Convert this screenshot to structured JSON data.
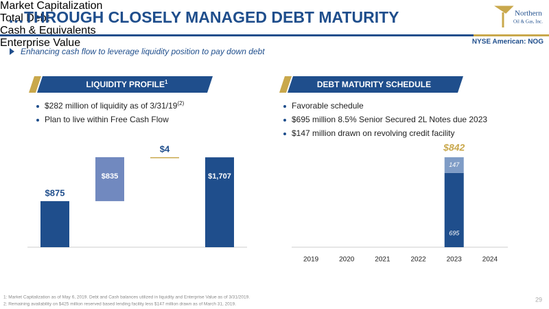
{
  "header": {
    "title": "…THROUGH CLOSELY MANAGED DEBT MATURITY",
    "logo": "Northern",
    "logo_sub": "Oil & Gas, Inc.",
    "ticker": "NYSE American: NOG"
  },
  "subtitle": "Enhancing cash flow to leverage liquidity position to pay down debt",
  "panels": [
    {
      "heading": "LIQUIDITY PROFILE",
      "heading_note": "1",
      "bullets": [
        {
          "text": "$282 million of liquidity as of 3/31/19",
          "note": "(2)"
        },
        {
          "text": "Plan to live within Free Cash Flow"
        }
      ]
    },
    {
      "heading": "DEBT MATURITY SCHEDULE",
      "bullets": [
        {
          "text": "Favorable schedule"
        },
        {
          "text": "$695 million 8.5% Senior Secured 2L Notes due 2023"
        },
        {
          "text": "$147 million drawn on revolving credit facility"
        }
      ]
    }
  ],
  "chart_data": [
    {
      "type": "waterfall",
      "categories": [
        "Market Capitalization",
        "Total Debt",
        "Cash & Equivalents",
        "Enterprise Value"
      ],
      "values": [
        875,
        835,
        4,
        1707
      ],
      "value_labels": [
        "$875",
        "$835",
        "$4",
        "$1,707"
      ],
      "measure": [
        "absolute",
        "increase",
        "decrease",
        "total"
      ],
      "colors": [
        "#1f4e8c",
        "#7189bf",
        "#c9a84c",
        "#1f4e8c"
      ],
      "ylim": [
        0,
        1800
      ]
    },
    {
      "type": "stacked_bar",
      "categories": [
        "2019",
        "2020",
        "2021",
        "2022",
        "2023",
        "2024"
      ],
      "series": [
        {
          "color": "#1f4e8c",
          "values": [
            null,
            null,
            null,
            null,
            695,
            null
          ]
        },
        {
          "color": "#7f9cc6",
          "values": [
            null,
            null,
            null,
            null,
            147,
            null
          ]
        }
      ],
      "annotation": "$842",
      "annotation_color": "#c9a84c",
      "ylim": [
        0,
        900
      ]
    }
  ],
  "footnotes": [
    "1: Market Capitalization as of May 6, 2019. Debt and Cash balances utilized in liquidity and Enterprise Value as of 3/31/2019.",
    "2: Remaining availability on $425 million reserved based lending facility less $147 million drawn as of March 31, 2019."
  ],
  "page_number": 29
}
